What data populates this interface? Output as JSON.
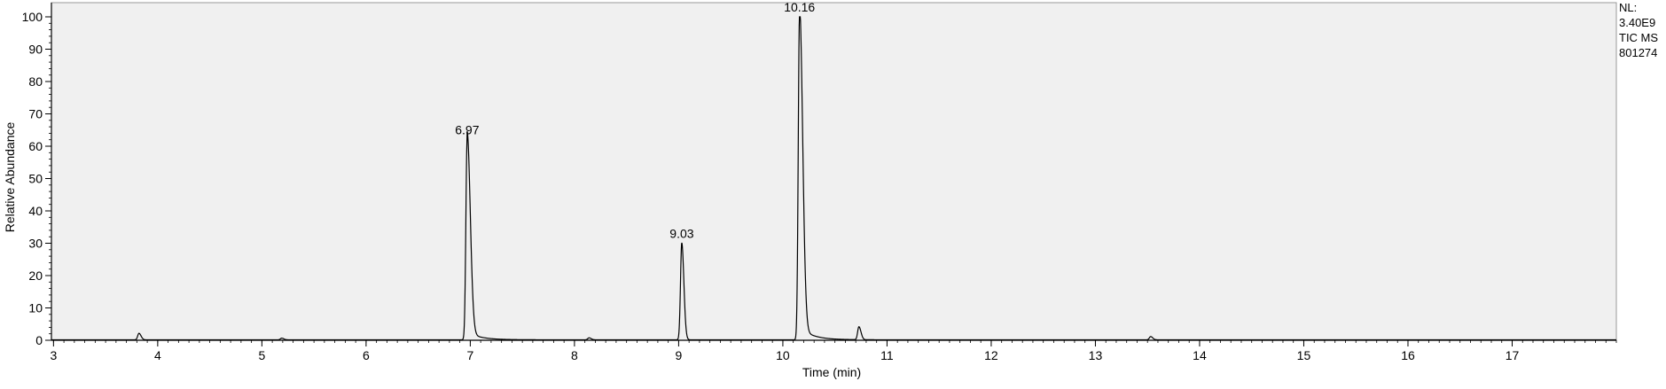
{
  "chart_data": {
    "type": "line",
    "title": "",
    "xlabel": "Time (min)",
    "ylabel": "Relative Abundance",
    "xlim": [
      2.98,
      18.0
    ],
    "ylim": [
      0,
      100
    ],
    "x_ticks": [
      3,
      4,
      5,
      6,
      7,
      8,
      9,
      10,
      11,
      12,
      13,
      14,
      15,
      16,
      17
    ],
    "y_ticks": [
      0,
      10,
      20,
      30,
      40,
      50,
      60,
      70,
      80,
      90,
      100
    ],
    "grid": false,
    "legend": "none",
    "plot_background": "#f0f0f0",
    "line_color": "#000000",
    "info_text": [
      "NL:",
      "3.40E9",
      "TIC  MS",
      "801274"
    ],
    "peaks": [
      {
        "x": 3.82,
        "y": 2.0,
        "label": ""
      },
      {
        "x": 5.19,
        "y": 0.5,
        "label": ""
      },
      {
        "x": 6.97,
        "y": 62,
        "label": "6.97"
      },
      {
        "x": 8.14,
        "y": 0.6,
        "label": ""
      },
      {
        "x": 9.03,
        "y": 30,
        "label": "9.03"
      },
      {
        "x": 10.16,
        "y": 100,
        "label": "10.16"
      },
      {
        "x": 10.73,
        "y": 4,
        "label": ""
      },
      {
        "x": 13.53,
        "y": 1.0,
        "label": ""
      }
    ]
  }
}
